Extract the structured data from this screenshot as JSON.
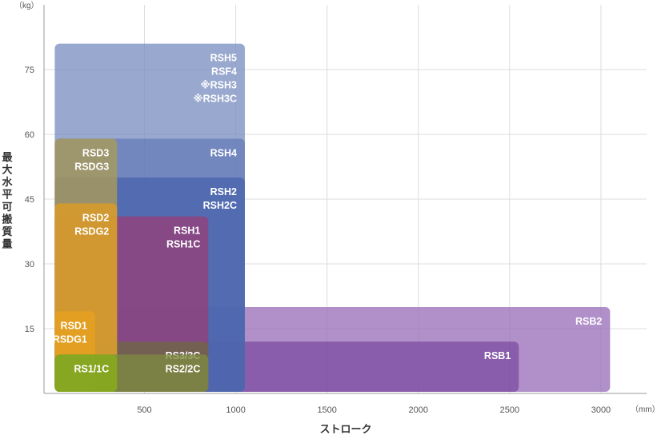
{
  "chart_data": {
    "type": "bar",
    "title": "",
    "xlabel": "ストローク",
    "ylabel": "最大水平可搬質量",
    "x_unit": "（mm）",
    "y_unit": "（kg）",
    "xlim": [
      -50,
      3250
    ],
    "ylim": [
      0,
      90
    ],
    "x_ticks": [
      500,
      1000,
      1500,
      2000,
      2500,
      3000
    ],
    "y_ticks": [
      15,
      30,
      45,
      60,
      75
    ],
    "grid": true,
    "legend": "none",
    "series": [
      {
        "lines": [
          "RSB2"
        ],
        "x_min": 0,
        "x_max": 3050,
        "y_max": 20,
        "color": "#9b70b8",
        "opacity": 0.78
      },
      {
        "lines": [
          "RSB1"
        ],
        "x_min": 0,
        "x_max": 2550,
        "y_max": 12,
        "color": "#7a4aa0",
        "opacity": 0.72
      },
      {
        "lines": [
          "RSH5",
          "RSF4",
          "※RSH3",
          "※RSH3C"
        ],
        "x_min": 0,
        "x_max": 1050,
        "y_max": 81,
        "color": "#7c8fc0",
        "opacity": 0.78
      },
      {
        "lines": [
          "RSH4"
        ],
        "x_min": 0,
        "x_max": 1050,
        "y_max": 59,
        "color": "#5a72b5",
        "opacity": 0.6
      },
      {
        "lines": [
          "RSH2",
          "RSH2C"
        ],
        "x_min": 0,
        "x_max": 1050,
        "y_max": 50,
        "color": "#3d5aa8",
        "opacity": 0.6
      },
      {
        "lines": [
          "RSH1",
          "RSH1C"
        ],
        "x_min": 0,
        "x_max": 850,
        "y_max": 41,
        "color": "#9a3b75",
        "opacity": 0.72
      },
      {
        "lines": [
          "RS3/3C"
        ],
        "x_min": 0,
        "x_max": 850,
        "y_max": 12,
        "color": "#6e6a40",
        "opacity": 0.72
      },
      {
        "lines": [
          "RSD3",
          "RSDG3"
        ],
        "x_min": 0,
        "x_max": 350,
        "y_max": 59,
        "color": "#a79a5a",
        "opacity": 0.82
      },
      {
        "lines": [
          "RSD2",
          "RSDG2"
        ],
        "x_min": 0,
        "x_max": 350,
        "y_max": 44,
        "color": "#d79a2a",
        "opacity": 0.88
      },
      {
        "lines": [
          "RSD1",
          "RSDG1"
        ],
        "x_min": 0,
        "x_max": 230,
        "y_max": 19,
        "color": "#e3a020",
        "opacity": 0.9
      },
      {
        "lines": [
          "RS2/2C"
        ],
        "x_min": 0,
        "x_max": 850,
        "y_max": 9,
        "color": "#7e8a40",
        "opacity": 0.78
      },
      {
        "lines": [
          "RS1/1C"
        ],
        "x_min": 0,
        "x_max": 350,
        "y_max": 9,
        "color": "#86a820",
        "opacity": 0.95
      }
    ]
  }
}
